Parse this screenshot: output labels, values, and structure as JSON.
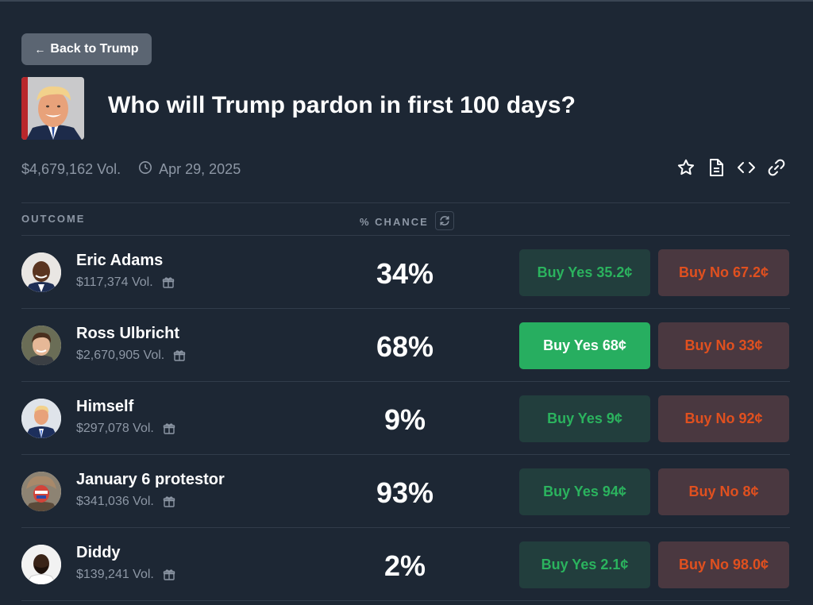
{
  "back_button": {
    "arrow": "←",
    "label": "Back to Trump"
  },
  "market": {
    "title": "Who will Trump pardon in first 100 days?",
    "volume": "$4,679,162 Vol.",
    "end_date": "Apr 29, 2025"
  },
  "actions": [
    "star-icon",
    "document-icon",
    "code-icon",
    "link-icon"
  ],
  "table": {
    "outcome_header": "OUTCOME",
    "chance_header": "% CHANCE",
    "rows": [
      {
        "name": "Eric Adams",
        "volume": "$117,374 Vol.",
        "chance": "34%",
        "buy_yes": "Buy Yes 35.2¢",
        "buy_no": "Buy No 67.2¢",
        "yes_active": false
      },
      {
        "name": "Ross Ulbricht",
        "volume": "$2,670,905 Vol.",
        "chance": "68%",
        "buy_yes": "Buy Yes 68¢",
        "buy_no": "Buy No 33¢",
        "yes_active": true
      },
      {
        "name": "Himself",
        "volume": "$297,078 Vol.",
        "chance": "9%",
        "buy_yes": "Buy Yes 9¢",
        "buy_no": "Buy No 92¢",
        "yes_active": false
      },
      {
        "name": "January 6 protestor",
        "volume": "$341,036 Vol.",
        "chance": "93%",
        "buy_yes": "Buy Yes 94¢",
        "buy_no": "Buy No 8¢",
        "yes_active": false
      },
      {
        "name": "Diddy",
        "volume": "$139,241 Vol.",
        "chance": "2%",
        "buy_yes": "Buy Yes 2.1¢",
        "buy_no": "Buy No 98.0¢",
        "yes_active": false
      }
    ]
  },
  "colors": {
    "background": "#1d2734",
    "yes_text": "#2bb35e",
    "yes_bg": "#223e3d",
    "yes_active_bg": "#27ae60",
    "no_text": "#e0501f",
    "no_bg": "#4a3840"
  }
}
